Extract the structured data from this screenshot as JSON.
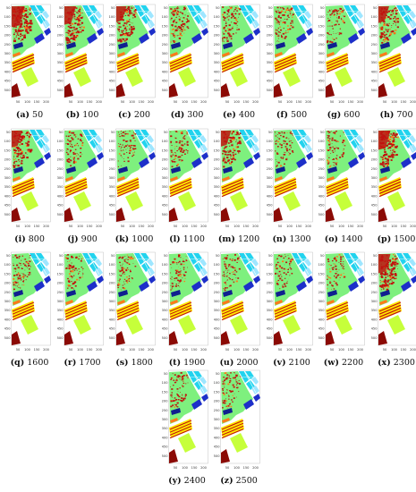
{
  "axis": {
    "y_ticks": [
      "50",
      "100",
      "150",
      "200",
      "250",
      "300",
      "350",
      "400",
      "450",
      "500"
    ],
    "x_ticks": [
      "50",
      "100",
      "150",
      "200"
    ]
  },
  "palette": {
    "background": "#ffffff",
    "grass": "#7ef07e",
    "red": "#c0130f",
    "dark_red": "#8b0a05",
    "cyan": "#22d3ee",
    "light_cyan": "#9ee6ff",
    "blue": "#1d2fc9",
    "dark_blue": "#10208f",
    "yellow": "#ffe800",
    "lime": "#c6ff3a",
    "orange": "#ff7a1a"
  },
  "panels": [
    {
      "letter": "(a)",
      "value": "50",
      "noise": 0.85
    },
    {
      "letter": "(b)",
      "value": "100",
      "noise": 0.7
    },
    {
      "letter": "(c)",
      "value": "200",
      "noise": 0.55
    },
    {
      "letter": "(d)",
      "value": "300",
      "noise": 0.5
    },
    {
      "letter": "(e)",
      "value": "400",
      "noise": 0.45
    },
    {
      "letter": "(f)",
      "value": "500",
      "noise": 0.4
    },
    {
      "letter": "(g)",
      "value": "600",
      "noise": 0.35
    },
    {
      "letter": "(h)",
      "value": "700",
      "noise": 0.6
    },
    {
      "letter": "(i)",
      "value": "800",
      "noise": 0.6
    },
    {
      "letter": "(j)",
      "value": "900",
      "noise": 0.3
    },
    {
      "letter": "(k)",
      "value": "1000",
      "noise": 0.3
    },
    {
      "letter": "(l)",
      "value": "1100",
      "noise": 0.3
    },
    {
      "letter": "(m)",
      "value": "1200",
      "noise": 0.55
    },
    {
      "letter": "(n)",
      "value": "1300",
      "noise": 0.3
    },
    {
      "letter": "(o)",
      "value": "1400",
      "noise": 0.3
    },
    {
      "letter": "(p)",
      "value": "1500",
      "noise": 0.75
    },
    {
      "letter": "(q)",
      "value": "1600",
      "noise": 0.35
    },
    {
      "letter": "(r)",
      "value": "1700",
      "noise": 0.35
    },
    {
      "letter": "(s)",
      "value": "1800",
      "noise": 0.3
    },
    {
      "letter": "(t)",
      "value": "1900",
      "noise": 0.3
    },
    {
      "letter": "(u)",
      "value": "2000",
      "noise": 0.3
    },
    {
      "letter": "(v)",
      "value": "2100",
      "noise": 0.3
    },
    {
      "letter": "(w)",
      "value": "2200",
      "noise": 0.3
    },
    {
      "letter": "(x)",
      "value": "2300",
      "noise": 0.75
    },
    {
      "letter": "(y)",
      "value": "2400",
      "noise": 0.3
    },
    {
      "letter": "(z)",
      "value": "2500",
      "noise": 0.35
    }
  ]
}
